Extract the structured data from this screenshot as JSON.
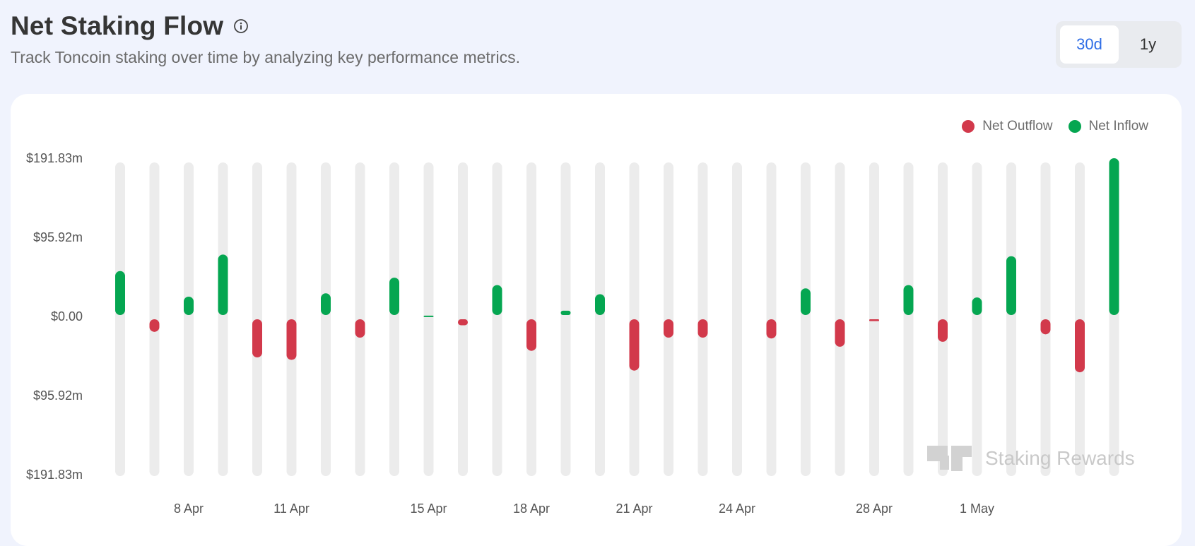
{
  "header": {
    "title": "Net Staking Flow",
    "subtitle": "Track Toncoin staking over time by analyzing key performance metrics."
  },
  "range_toggle": {
    "options": [
      "30d",
      "1y"
    ],
    "selected": "30d"
  },
  "legend": [
    {
      "label": "Net Outflow",
      "color": "#d2394b"
    },
    {
      "label": "Net Inflow",
      "color": "#05a651"
    }
  ],
  "watermark": {
    "label": "Staking Rewards"
  },
  "chart_data": {
    "type": "bar",
    "ylim": [
      -191.83,
      191.83
    ],
    "y_ticks": [
      {
        "value": 191.83,
        "label": "$191.83m"
      },
      {
        "value": 95.92,
        "label": "$95.92m"
      },
      {
        "value": 0,
        "label": "$0.00"
      },
      {
        "value": -95.92,
        "label": "$95.92m"
      },
      {
        "value": -191.83,
        "label": "$191.83m"
      }
    ],
    "x_ticks": [
      {
        "index": 2,
        "label": "8 Apr"
      },
      {
        "index": 5,
        "label": "11 Apr"
      },
      {
        "index": 9,
        "label": "15 Apr"
      },
      {
        "index": 12,
        "label": "18 Apr"
      },
      {
        "index": 15,
        "label": "21 Apr"
      },
      {
        "index": 18,
        "label": "24 Apr"
      },
      {
        "index": 22,
        "label": "28 Apr"
      },
      {
        "index": 25,
        "label": "1 May"
      }
    ],
    "series": [
      {
        "name": "Net Outflow",
        "color": "#d2394b"
      },
      {
        "name": "Net Inflow",
        "color": "#05a651"
      }
    ],
    "values": [
      55,
      -17,
      24,
      75,
      -48,
      -51,
      28,
      -24,
      47,
      1,
      -9,
      38,
      -40,
      7,
      27,
      -64,
      -24,
      -24,
      0,
      -25,
      34,
      -35,
      -4,
      38,
      -29,
      23,
      73,
      -20,
      -66,
      191.83
    ],
    "grid": false,
    "legend_position": "top-right"
  }
}
